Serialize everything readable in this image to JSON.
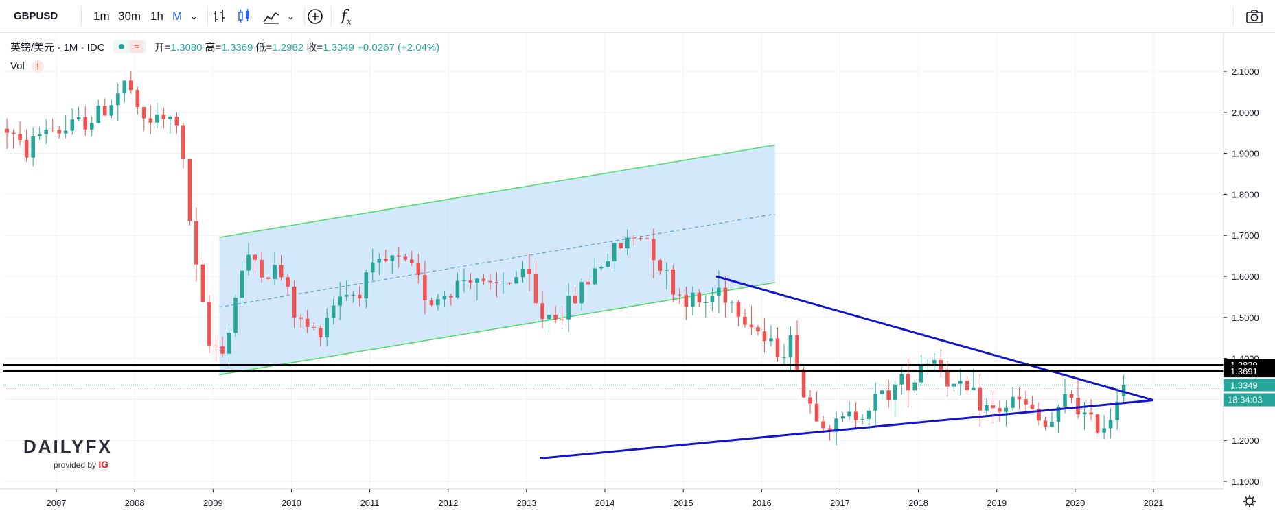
{
  "toolbar": {
    "symbol": "GBPUSD",
    "intervals": [
      "1m",
      "30m",
      "1h",
      "M"
    ],
    "active_interval": "M",
    "indicators_icon": "fx-icon",
    "compare_icon": "plus-circle-icon",
    "screenshot_icon": "camera-icon"
  },
  "legend": {
    "name": "英镑/美元 · 1M · IDC",
    "open_label": "开=",
    "open": "1.3080",
    "high_label": "高=",
    "high": "1.3369",
    "low_label": "低=",
    "low": "1.2982",
    "close_label": "收=",
    "close": "1.3349",
    "change": "+0.0267 (+2.04%)",
    "vol_label": "Vol",
    "vol_warning": "!"
  },
  "logo": {
    "brand": "DAILY",
    "brand_fx": "FX",
    "provided_by": "provided by",
    "provider": "IG"
  },
  "colors": {
    "up": "#26a69a",
    "down": "#ef5350",
    "channel": "#4cd964",
    "channel_fill": "#cce4fb",
    "trend": "#1515c8",
    "grid": "#eef0f3"
  },
  "chart_data": {
    "type": "candlestick",
    "x_ticks": [
      "2007",
      "2008",
      "2009",
      "2010",
      "2011",
      "2012",
      "2013",
      "2014",
      "2015",
      "2016",
      "2017",
      "2018",
      "2019",
      "2020",
      "2021"
    ],
    "y_ticks": [
      "2.1000",
      "2.0000",
      "1.9000",
      "1.8000",
      "1.7000",
      "1.6000",
      "1.5000",
      "1.4000",
      "1.3000",
      "1.2000",
      "1.1000"
    ],
    "ylim": [
      1.08,
      2.16
    ],
    "xlim": [
      2006.37,
      2021.92
    ],
    "price_labels": [
      {
        "value": 1.3839,
        "text": "1.3839",
        "style": "horizontal-line"
      },
      {
        "value": 1.3691,
        "text": "1.3691",
        "style": "horizontal-line"
      },
      {
        "value": 1.3349,
        "text": "1.3349",
        "style": "last-price"
      }
    ],
    "countdown": "18:34:03",
    "anchors": [
      [
        2006.37,
        1.96
      ],
      [
        2006.6,
        1.9
      ],
      [
        2006.85,
        1.965
      ],
      [
        2007.1,
        1.955
      ],
      [
        2007.33,
        1.975
      ],
      [
        2007.55,
        1.995
      ],
      [
        2007.8,
        2.05
      ],
      [
        2007.92,
        2.08
      ],
      [
        2008.05,
        1.98
      ],
      [
        2008.4,
        1.98
      ],
      [
        2008.55,
        1.98
      ],
      [
        2008.65,
        1.82
      ],
      [
        2008.78,
        1.62
      ],
      [
        2008.95,
        1.43
      ],
      [
        2009.17,
        1.43
      ],
      [
        2009.33,
        1.6
      ],
      [
        2009.5,
        1.65
      ],
      [
        2009.67,
        1.61
      ],
      [
        2009.83,
        1.62
      ],
      [
        2010.08,
        1.49
      ],
      [
        2010.33,
        1.46
      ],
      [
        2010.6,
        1.56
      ],
      [
        2010.83,
        1.56
      ],
      [
        2011.08,
        1.62
      ],
      [
        2011.3,
        1.64
      ],
      [
        2011.55,
        1.61
      ],
      [
        2011.75,
        1.54
      ],
      [
        2011.95,
        1.56
      ],
      [
        2012.33,
        1.61
      ],
      [
        2012.5,
        1.56
      ],
      [
        2012.83,
        1.6
      ],
      [
        2013.05,
        1.59
      ],
      [
        2013.15,
        1.5
      ],
      [
        2013.5,
        1.52
      ],
      [
        2013.67,
        1.56
      ],
      [
        2013.92,
        1.63
      ],
      [
        2014.25,
        1.68
      ],
      [
        2014.5,
        1.71
      ],
      [
        2014.67,
        1.64
      ],
      [
        2014.92,
        1.56
      ],
      [
        2015.25,
        1.53
      ],
      [
        2015.45,
        1.57
      ],
      [
        2015.67,
        1.53
      ],
      [
        2015.92,
        1.48
      ],
      [
        2016.08,
        1.43
      ],
      [
        2016.25,
        1.42
      ],
      [
        2016.42,
        1.45
      ],
      [
        2016.5,
        1.32
      ],
      [
        2016.75,
        1.26
      ],
      [
        2016.92,
        1.23
      ],
      [
        2017.08,
        1.25
      ],
      [
        2017.4,
        1.29
      ],
      [
        2017.65,
        1.32
      ],
      [
        2017.75,
        1.34
      ],
      [
        2017.95,
        1.35
      ],
      [
        2018.05,
        1.4
      ],
      [
        2018.25,
        1.4
      ],
      [
        2018.42,
        1.33
      ],
      [
        2018.67,
        1.31
      ],
      [
        2018.92,
        1.27
      ],
      [
        2019.08,
        1.28
      ],
      [
        2019.25,
        1.3
      ],
      [
        2019.42,
        1.27
      ],
      [
        2019.6,
        1.23
      ],
      [
        2019.75,
        1.25
      ],
      [
        2019.92,
        1.32
      ],
      [
        2020.17,
        1.24
      ],
      [
        2020.42,
        1.24
      ],
      [
        2020.5,
        1.29
      ],
      [
        2020.59,
        1.3349
      ]
    ],
    "drawings": {
      "channel_upper": [
        [
          2009.08,
          1.695
        ],
        [
          2016.17,
          1.92
        ]
      ],
      "channel_lower": [
        [
          2009.08,
          1.36
        ],
        [
          2016.17,
          1.585
        ]
      ],
      "channel_mid": [
        [
          2009.08,
          1.525
        ],
        [
          2016.17,
          1.752
        ]
      ],
      "triangle_upper": [
        [
          2015.42,
          1.6
        ],
        [
          2021.0,
          1.298
        ]
      ],
      "triangle_lower": [
        [
          2013.17,
          1.156
        ],
        [
          2021.0,
          1.298
        ]
      ]
    }
  }
}
